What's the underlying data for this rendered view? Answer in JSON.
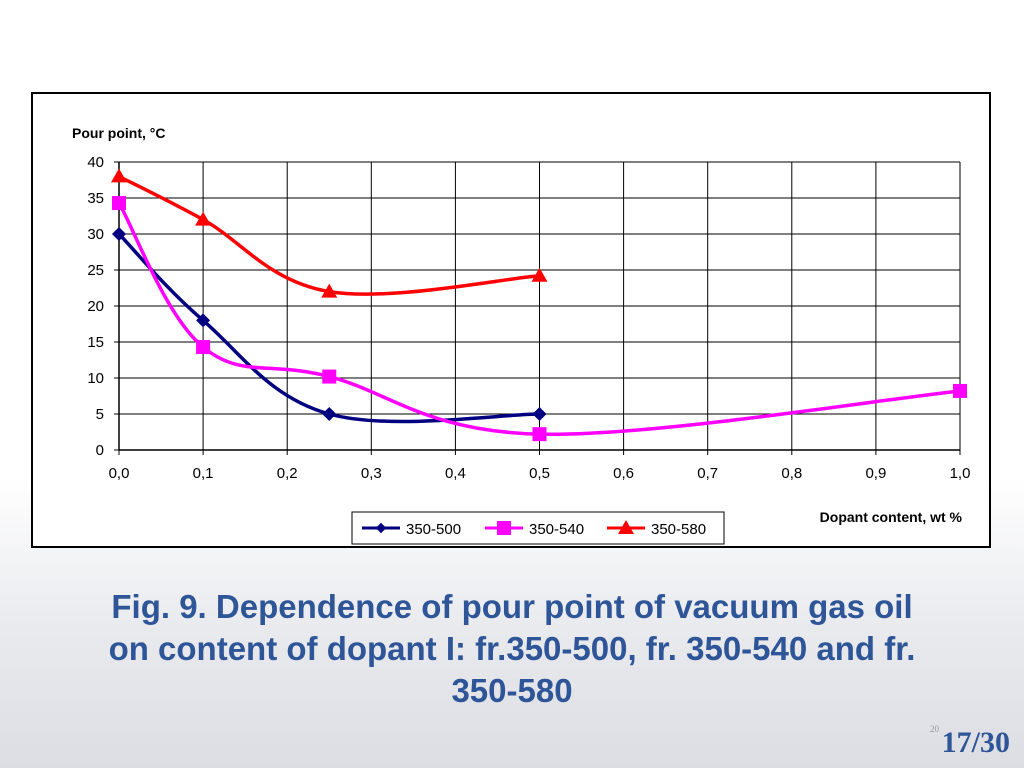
{
  "chart_data": {
    "type": "line",
    "ylabel": "Pour point, °C",
    "xlabel": "Dopant content, wt %",
    "x_ticks": [
      "0,0",
      "0,1",
      "0,2",
      "0,3",
      "0,4",
      "0,5",
      "0,6",
      "0,7",
      "0,8",
      "0,9",
      "1,0"
    ],
    "y_ticks": [
      "0",
      "5",
      "10",
      "15",
      "20",
      "25",
      "30",
      "35",
      "40"
    ],
    "xlim": [
      0,
      1.0
    ],
    "ylim": [
      0,
      40
    ],
    "grid": true,
    "legend_position": "bottom",
    "series": [
      {
        "name": "350-500",
        "color": "#000080",
        "marker": "diamond",
        "x": [
          0.0,
          0.1,
          0.25,
          0.5
        ],
        "y": [
          30,
          18,
          5,
          5
        ]
      },
      {
        "name": "350-540",
        "color": "#ff00ff",
        "marker": "square",
        "x": [
          0.0,
          0.1,
          0.25,
          0.5,
          1.0
        ],
        "y": [
          34.3,
          14.3,
          10.2,
          2.2,
          8.2
        ]
      },
      {
        "name": "350-580",
        "color": "#ff0000",
        "marker": "triangle",
        "x": [
          0.0,
          0.1,
          0.25,
          0.5
        ],
        "y": [
          38,
          32,
          22,
          24.2
        ]
      }
    ]
  },
  "caption": {
    "line1": "Fig. 9. Dependence of pour point of vacuum gas oil",
    "line2": "on content of dopant I: fr.350-500, fr. 350-540 and fr.",
    "line3": "350-580"
  },
  "slide": {
    "small_number": "20",
    "counter": "17/30"
  }
}
